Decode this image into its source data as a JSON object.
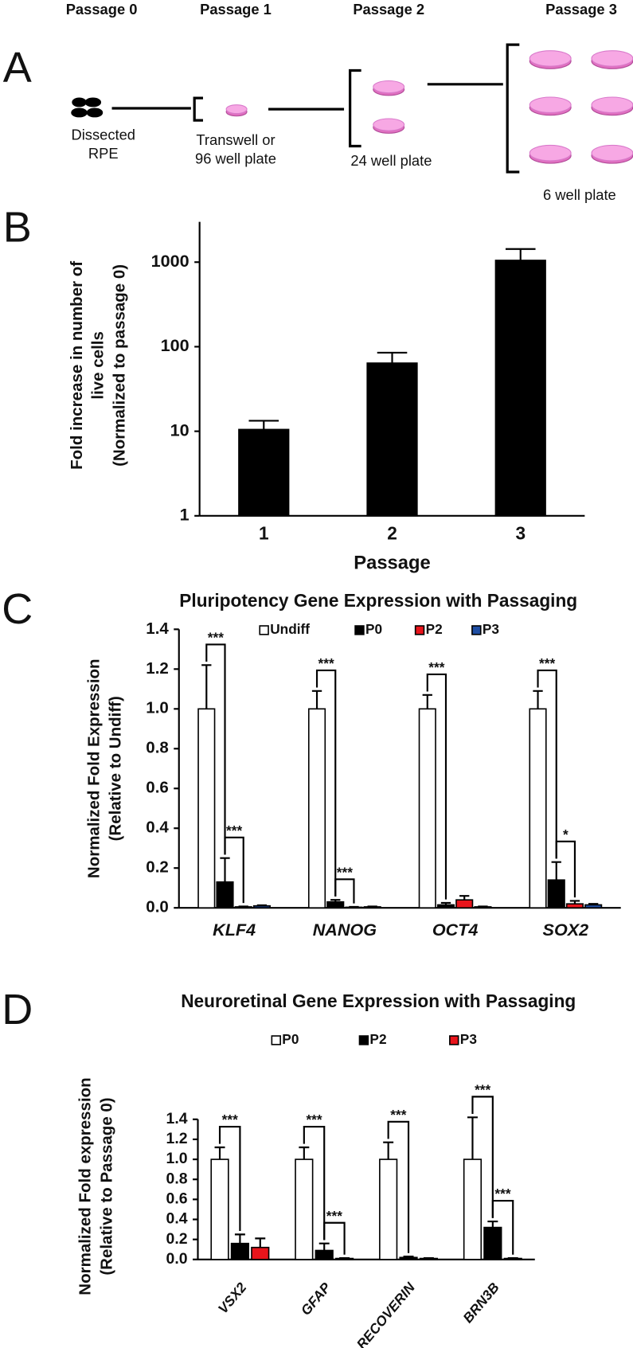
{
  "panel_labels": [
    "A",
    "B",
    "C",
    "D"
  ],
  "diagram": {
    "passages": [
      "Passage 0",
      "Passage 1",
      "Passage 2",
      "Passage 3"
    ],
    "captions": [
      [
        "Dissected",
        "RPE"
      ],
      [
        "Transwell or",
        "96 well plate"
      ],
      [
        "24 well plate"
      ],
      [
        "6 well plate"
      ]
    ]
  },
  "chart_data": [
    {
      "type": "bar",
      "log_scale": true,
      "xlabel": "Passage",
      "ylabel": [
        "Fold increase in number of",
        "live cells",
        "(Normalized to passage 0)"
      ],
      "categories": [
        "1",
        "2",
        "3"
      ],
      "series": [
        {
          "color": "#000000",
          "values": [
            10.5,
            64,
            1050
          ],
          "errors": [
            2.8,
            21,
            380
          ]
        }
      ],
      "ylim": [
        1,
        3000
      ],
      "yticks": [
        1,
        10,
        100,
        1000
      ]
    },
    {
      "type": "bar",
      "title": "Pluripotency Gene Expression with Passaging",
      "ylabel": [
        "Normalized Fold Expression",
        "(Relative to Undiff)"
      ],
      "categories": [
        "KLF4",
        "NANOG",
        "OCT4",
        "SOX2"
      ],
      "legend": "top",
      "series": [
        {
          "name": "Undiff",
          "color": "#ffffff",
          "values": [
            1.0,
            1.0,
            1.0,
            1.0
          ],
          "errors": [
            0.22,
            0.09,
            0.07,
            0.09
          ]
        },
        {
          "name": "P0",
          "color": "#000000",
          "values": [
            0.13,
            0.03,
            0.015,
            0.14
          ],
          "errors": [
            0.12,
            0.01,
            0.01,
            0.09
          ]
        },
        {
          "name": "P2",
          "color": "#e8141b",
          "values": [
            0.005,
            0.003,
            0.04,
            0.02
          ],
          "errors": [
            0.002,
            0.002,
            0.02,
            0.015
          ]
        },
        {
          "name": "P3",
          "color": "#1f4ea3",
          "values": [
            0.01,
            0.005,
            0.005,
            0.015
          ],
          "errors": [
            0.003,
            0.002,
            0.002,
            0.005
          ]
        }
      ],
      "annotations": [
        "***",
        "***",
        "***",
        "***",
        "***",
        "***",
        "*"
      ],
      "ylim": [
        0,
        1.4
      ],
      "yticks": [
        {
          "value": 0,
          "label": "0.0"
        },
        0.2,
        0.4,
        0.6,
        0.8,
        {
          "value": 1,
          "label": "1.0"
        },
        1.2,
        1.4
      ]
    },
    {
      "type": "bar",
      "title": "Neuroretinal Gene Expression with Passaging",
      "ylabel": [
        "Normalized Fold expression",
        "(Relative to Passage 0)"
      ],
      "categories": [
        "VSX2",
        "GFAP",
        "RECOVERIN",
        "BRN3B"
      ],
      "legend": "top",
      "series": [
        {
          "name": "P0",
          "color": "#ffffff",
          "values": [
            1.0,
            1.0,
            1.0,
            1.0
          ],
          "errors": [
            0.12,
            0.12,
            0.17,
            0.42
          ]
        },
        {
          "name": "P2",
          "color": "#000000",
          "values": [
            0.16,
            0.09,
            0.02,
            0.32
          ],
          "errors": [
            0.09,
            0.07,
            0.01,
            0.06
          ]
        },
        {
          "name": "P3",
          "color": "#e8141b",
          "values": [
            0.12,
            0.01,
            0.01,
            0.01
          ],
          "errors": [
            0.09,
            0.004,
            0.004,
            0.004
          ]
        }
      ],
      "annotations": [
        "***",
        "***",
        "***",
        "***",
        "***",
        "***"
      ],
      "ylim": [
        0,
        1.4
      ],
      "yticks": [
        {
          "value": 0,
          "label": "0.0"
        },
        0.2,
        0.4,
        0.6,
        0.8,
        {
          "value": 1,
          "label": "1.0"
        },
        1.2,
        1.4
      ]
    }
  ]
}
